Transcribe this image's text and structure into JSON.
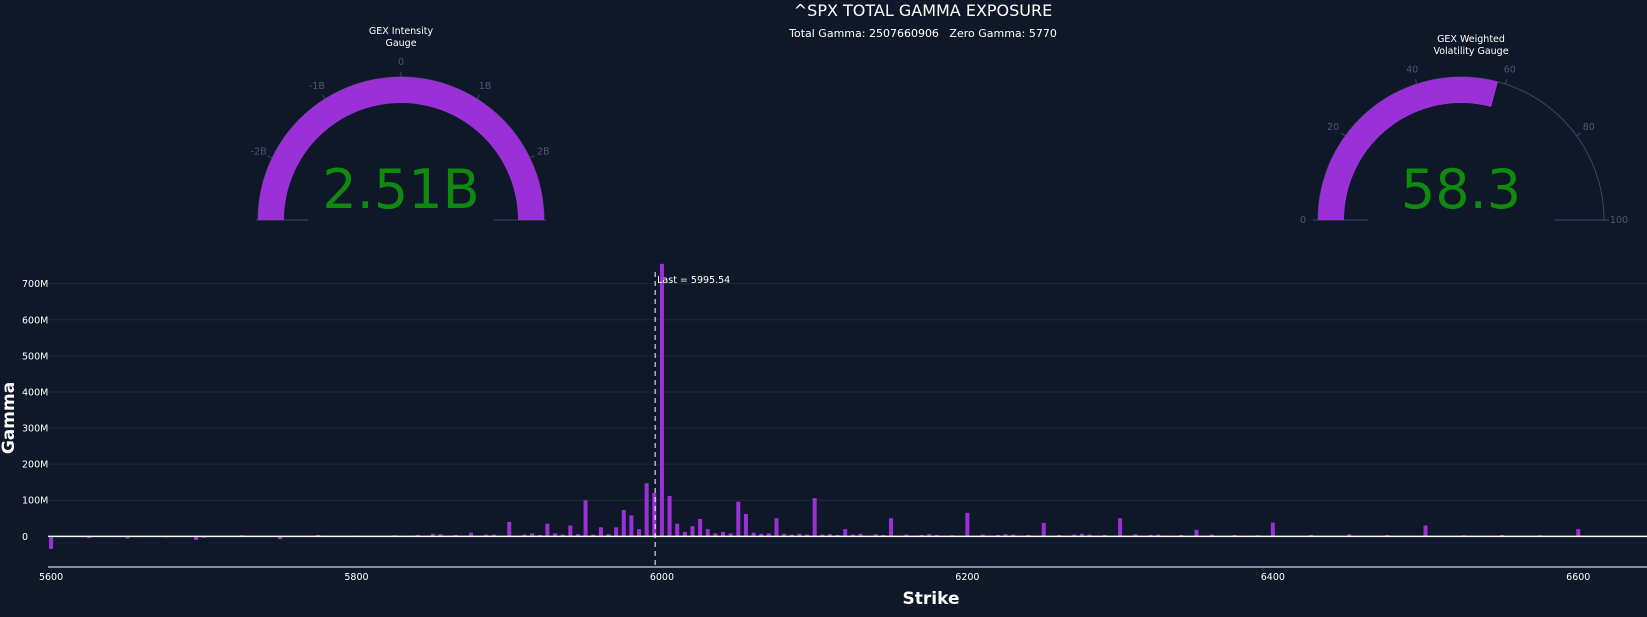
{
  "header": {
    "title": "^SPX TOTAL GAMMA EXPOSURE",
    "subtitle": "Total Gamma: 2507660906   Zero Gamma: 5770"
  },
  "gauges": [
    {
      "id": "intensity",
      "title_lines": [
        "GEX Intensity",
        "Gauge"
      ],
      "value_text": "2.51B",
      "range": [
        -2.8,
        2.8
      ],
      "fill_range": [
        -2.8,
        2.8
      ],
      "tick_labels": [
        "-2B",
        "-1B",
        "0",
        "1B",
        "2B"
      ],
      "bar_color": "#9b30d9",
      "number_color": "#0f8a0f"
    },
    {
      "id": "volatility",
      "title_lines": [
        "GEX Weighted",
        "Volatility Gauge"
      ],
      "value_text": "58.3",
      "range": [
        0,
        100
      ],
      "fill_range": [
        0,
        58.3
      ],
      "tick_labels": [
        "0",
        "20",
        "40",
        "60",
        "80",
        "100"
      ],
      "bar_color": "#9b30d9",
      "number_color": "#0f8a0f"
    }
  ],
  "chart_data": {
    "type": "bar",
    "xlabel": "Strike",
    "ylabel": "Gamma",
    "xlim": [
      5598,
      6645
    ],
    "ylim": [
      -85000000,
      760000000
    ],
    "x_ticks": [
      5600,
      5800,
      6000,
      6200,
      6400,
      6600
    ],
    "x_tick_labels": [
      "5600",
      "5800",
      "6000",
      "6200",
      "6400",
      "6600"
    ],
    "y_ticks": [
      0,
      100000000,
      200000000,
      300000000,
      400000000,
      500000000,
      600000000,
      700000000
    ],
    "y_tick_labels": [
      "0",
      "100M",
      "200M",
      "300M",
      "400M",
      "500M",
      "600M",
      "700M"
    ],
    "grid": true,
    "bar_color": "#9b30d9",
    "bar_width": 4,
    "annotation": {
      "x": 5995.54,
      "text": "Last = 5995.54"
    },
    "strikes": [
      5600,
      5625,
      5650,
      5675,
      5695,
      5700,
      5725,
      5750,
      5775,
      5800,
      5825,
      5840,
      5850,
      5855,
      5865,
      5875,
      5885,
      5890,
      5900,
      5910,
      5915,
      5920,
      5925,
      5930,
      5935,
      5940,
      5945,
      5950,
      5955,
      5960,
      5965,
      5970,
      5975,
      5980,
      5985,
      5990,
      5995,
      6000,
      6005,
      6010,
      6015,
      6020,
      6025,
      6030,
      6035,
      6040,
      6045,
      6050,
      6055,
      6060,
      6065,
      6070,
      6075,
      6080,
      6085,
      6090,
      6095,
      6100,
      6105,
      6110,
      6115,
      6120,
      6125,
      6130,
      6140,
      6145,
      6150,
      6160,
      6170,
      6175,
      6180,
      6190,
      6200,
      6210,
      6220,
      6225,
      6230,
      6240,
      6250,
      6260,
      6270,
      6275,
      6280,
      6290,
      6300,
      6310,
      6320,
      6325,
      6340,
      6350,
      6360,
      6375,
      6390,
      6400,
      6425,
      6450,
      6475,
      6500,
      6525,
      6550,
      6575,
      6600
    ],
    "values": [
      -35000000,
      -5000000,
      -6000000,
      -3000000,
      -10000000,
      -4000000,
      3000000,
      -8000000,
      4000000,
      2000000,
      3000000,
      4000000,
      7000000,
      6000000,
      4000000,
      10000000,
      5000000,
      5000000,
      40000000,
      5000000,
      8000000,
      4000000,
      35000000,
      8000000,
      5000000,
      30000000,
      6000000,
      100000000,
      5000000,
      25000000,
      6000000,
      25000000,
      73000000,
      58000000,
      20000000,
      147000000,
      120000000,
      755000000,
      112000000,
      35000000,
      12000000,
      28000000,
      48000000,
      20000000,
      8000000,
      12000000,
      8000000,
      96000000,
      62000000,
      10000000,
      7000000,
      8000000,
      50000000,
      7000000,
      5000000,
      7000000,
      5000000,
      106000000,
      5000000,
      6000000,
      4000000,
      20000000,
      5000000,
      7000000,
      6000000,
      4000000,
      50000000,
      5000000,
      4000000,
      6000000,
      4000000,
      3000000,
      65000000,
      5000000,
      4000000,
      6000000,
      5000000,
      4000000,
      37000000,
      4000000,
      5000000,
      7000000,
      5000000,
      4000000,
      50000000,
      6000000,
      4000000,
      5000000,
      4000000,
      18000000,
      5000000,
      4000000,
      3000000,
      38000000,
      4000000,
      6000000,
      4000000,
      30000000,
      3000000,
      4000000,
      3000000,
      20000000
    ]
  }
}
